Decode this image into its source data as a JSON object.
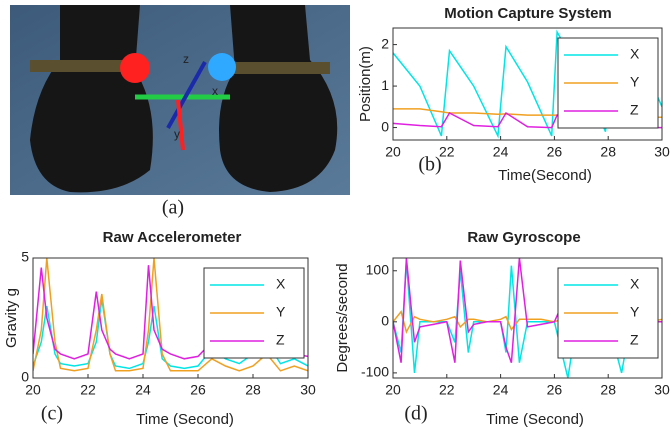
{
  "photo": {
    "caption": "(a)",
    "axis_letters": [
      "z",
      "x",
      "y"
    ]
  },
  "chart_data": [
    {
      "type": "line",
      "title": "Motion Capture System",
      "caption": "(b)",
      "xlabel": "Time(Second)",
      "ylabel": "Position(m)",
      "xlim": [
        20,
        30
      ],
      "xticks": [
        20,
        22,
        24,
        26,
        28,
        30
      ],
      "ylim": [
        -0.3,
        2.4
      ],
      "yticks": [
        0,
        1,
        2
      ],
      "legend": "upper right",
      "x": [
        20,
        21,
        21.8,
        22.1,
        23,
        23.9,
        24.2,
        25,
        25.9,
        26.1,
        27,
        27.9,
        28.1,
        29,
        29.8,
        30
      ],
      "series": [
        {
          "name": "X",
          "color": "#00e5e5",
          "values": [
            1.8,
            1.0,
            -0.2,
            1.85,
            1.0,
            -0.2,
            1.95,
            1.1,
            -0.2,
            2.3,
            1.3,
            -0.1,
            2.1,
            1.3,
            0.8,
            0.5
          ]
        },
        {
          "name": "Y",
          "color": "#f0a020",
          "values": [
            0.45,
            0.45,
            0.38,
            0.35,
            0.35,
            0.32,
            0.33,
            0.3,
            0.3,
            0.3,
            0.3,
            0.28,
            0.28,
            0.27,
            0.25,
            0.25
          ]
        },
        {
          "name": "Z",
          "color": "#e020e0",
          "values": [
            0.1,
            0.05,
            0.02,
            0.35,
            0.05,
            0.02,
            0.35,
            0.02,
            0.0,
            0.3,
            0.0,
            0.0,
            0.3,
            0.0,
            0.0,
            0.0
          ]
        }
      ]
    },
    {
      "type": "line",
      "title": "Raw Accelerometer",
      "caption": "(c)",
      "xlabel": "Time (Second)",
      "ylabel": "Gravity g",
      "xlim": [
        20,
        30
      ],
      "xticks": [
        20,
        22,
        24,
        26,
        28,
        30
      ],
      "ylim": [
        0,
        5
      ],
      "yticks": [
        0,
        5
      ],
      "legend": "upper right",
      "x": [
        20,
        20.3,
        20.5,
        20.8,
        21,
        21.5,
        22,
        22.3,
        22.5,
        22.8,
        23,
        23.5,
        24,
        24.2,
        24.4,
        24.7,
        25,
        25.5,
        26,
        26.5,
        27,
        27.5,
        28,
        28.5,
        29,
        29.5,
        30
      ],
      "series": [
        {
          "name": "X",
          "color": "#00e5e5",
          "values": [
            0.5,
            1.5,
            3.0,
            1.0,
            0.6,
            0.5,
            0.6,
            1.5,
            3.3,
            1.0,
            0.5,
            0.4,
            0.6,
            1.5,
            3.0,
            0.8,
            0.5,
            0.4,
            0.5,
            1.2,
            0.8,
            0.6,
            1.0,
            1.5,
            0.6,
            0.8,
            0.5
          ]
        },
        {
          "name": "Y",
          "color": "#f0a020",
          "values": [
            0.3,
            2.0,
            5.0,
            1.5,
            0.4,
            0.3,
            0.4,
            2.0,
            3.5,
            1.0,
            0.3,
            0.3,
            0.4,
            2.0,
            5.0,
            1.0,
            0.3,
            0.3,
            0.3,
            0.8,
            0.5,
            0.3,
            0.5,
            1.0,
            0.3,
            0.5,
            0.3
          ]
        },
        {
          "name": "Z",
          "color": "#e020e0",
          "values": [
            1.0,
            4.6,
            2.5,
            1.2,
            1.0,
            0.8,
            1.0,
            3.6,
            2.0,
            1.2,
            1.0,
            0.8,
            1.0,
            4.7,
            2.0,
            1.2,
            1.0,
            0.8,
            0.9,
            1.5,
            1.0,
            0.9,
            1.2,
            1.8,
            0.9,
            1.0,
            0.9
          ]
        }
      ]
    },
    {
      "type": "line",
      "title": "Raw Gyroscope",
      "caption": "(d)",
      "xlabel": "Time (Second)",
      "ylabel": "Degrees/second",
      "xlim": [
        20,
        30
      ],
      "xticks": [
        20,
        22,
        24,
        26,
        28,
        30
      ],
      "ylim": [
        -110,
        125
      ],
      "yticks": [
        -100,
        0,
        100
      ],
      "legend": "upper right",
      "x": [
        20,
        20.3,
        20.5,
        20.8,
        21,
        21.5,
        22,
        22.3,
        22.5,
        22.8,
        23,
        23.5,
        24,
        24.2,
        24.4,
        24.7,
        25,
        25.5,
        26,
        26.5,
        27,
        27.5,
        28,
        28.5,
        29,
        29.5,
        30
      ],
      "series": [
        {
          "name": "X",
          "color": "#00e5e5",
          "values": [
            0,
            -60,
            120,
            -100,
            0,
            0,
            0,
            -40,
            100,
            -60,
            0,
            0,
            0,
            -60,
            110,
            -80,
            0,
            0,
            0,
            -110,
            60,
            -20,
            0,
            -100,
            50,
            0,
            0
          ]
        },
        {
          "name": "Y",
          "color": "#f0a020",
          "values": [
            0,
            20,
            -20,
            10,
            5,
            0,
            5,
            10,
            -10,
            5,
            5,
            0,
            5,
            10,
            -15,
            5,
            5,
            5,
            0,
            10,
            -5,
            5,
            0,
            10,
            -5,
            0,
            5
          ]
        },
        {
          "name": "Z",
          "color": "#e020e0",
          "values": [
            0,
            -80,
            125,
            -40,
            -10,
            -5,
            0,
            -80,
            120,
            -20,
            -5,
            0,
            0,
            -50,
            -80,
            125,
            -10,
            -5,
            0,
            60,
            -20,
            0,
            0,
            80,
            -20,
            0,
            0
          ]
        }
      ]
    }
  ]
}
